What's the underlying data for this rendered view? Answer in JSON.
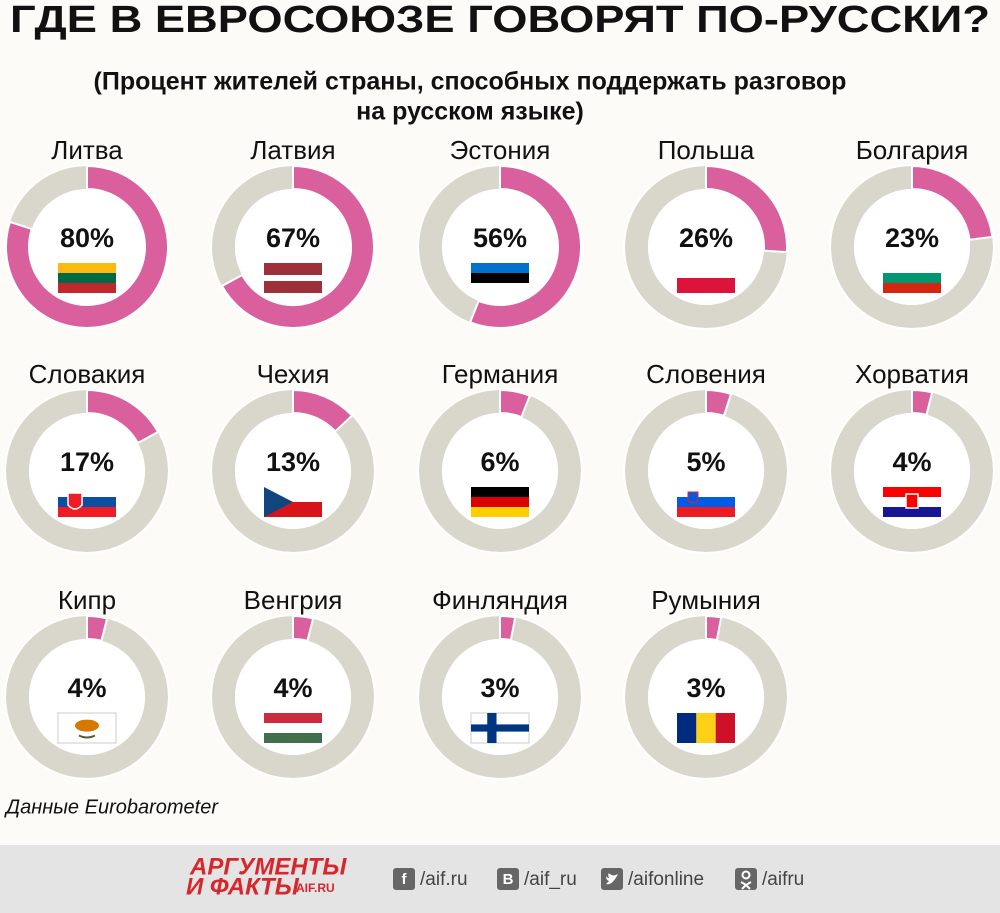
{
  "chart_data": {
    "type": "donut",
    "title": "ГДЕ В ЕВРОСОЮЗЕ ГОВОРЯТ ПО-РУССКИ?",
    "subtitle": [
      "(Процент жителей страны, способных поддержать разговор",
      "на русском языке)"
    ],
    "categories": [
      "Литва",
      "Латвия",
      "Эстония",
      "Польша",
      "Болгария",
      "Словакия",
      "Чехия",
      "Германия",
      "Словения",
      "Хорватия",
      "Кипр",
      "Венгрия",
      "Финляндия",
      "Румыния"
    ],
    "values": [
      80,
      67,
      56,
      26,
      23,
      17,
      13,
      6,
      5,
      4,
      4,
      4,
      3,
      3
    ],
    "value_labels": [
      "80%",
      "67%",
      "56%",
      "26%",
      "23%",
      "17%",
      "13%",
      "6%",
      "5%",
      "4%",
      "4%",
      "4%",
      "3%",
      "3%"
    ],
    "color": "#d9609d",
    "track_color": "#d9d7cc",
    "source": "Данные Eurobarometer"
  },
  "footer": {
    "logo": [
      "АРГУМЕНТЫ",
      "И ФАКТЫ",
      "AIF.RU"
    ],
    "icons": [
      "f",
      "В"
    ],
    "links": [
      "/aif.ru",
      "/aif_ru",
      "/aifonline",
      "/aifru"
    ]
  }
}
